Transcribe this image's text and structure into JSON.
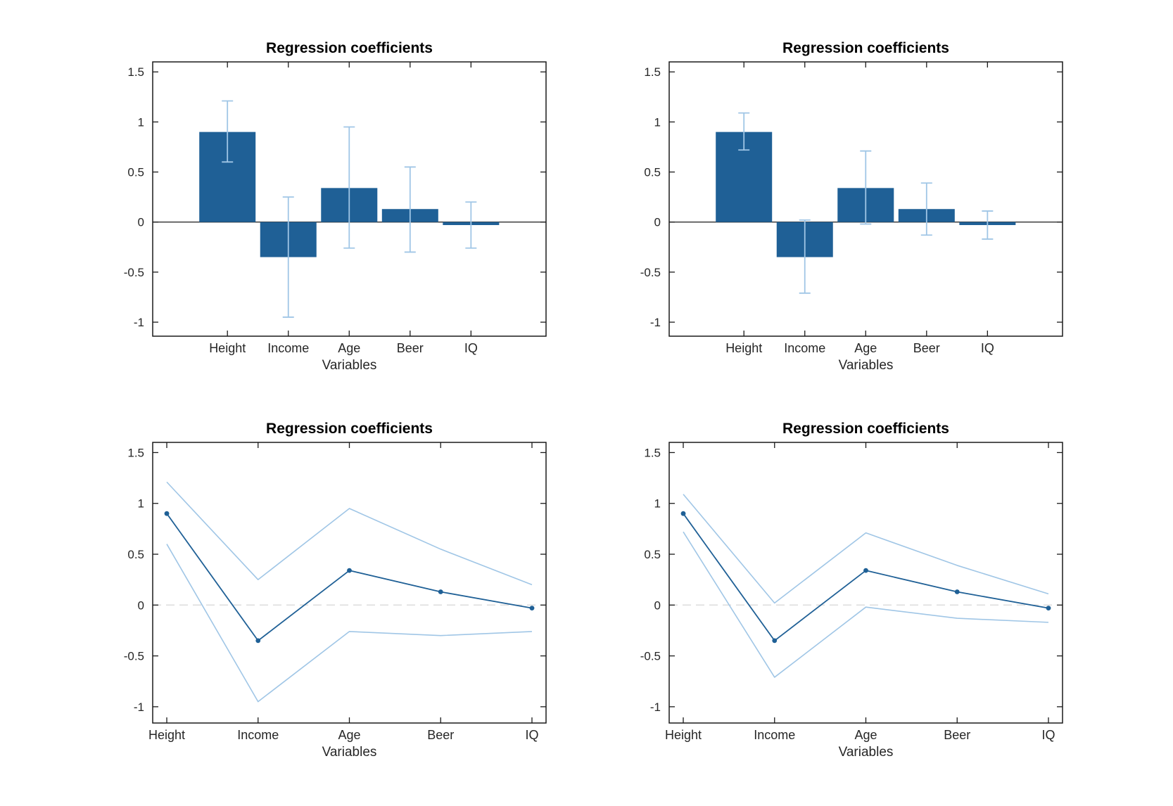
{
  "figure": {
    "background": "#ffffff",
    "colors": {
      "primary": "#1F6096",
      "ci": "#A0C6E6",
      "zero_dash": "#DCDCDC",
      "axis": "#1A1A1A",
      "tick_label": "#262626",
      "title": "#000000"
    }
  },
  "chart_data": [
    {
      "type": "bar",
      "position": "top-left",
      "title": "Regression coefficients",
      "xlabel": "Variables",
      "categories": [
        "Height",
        "Income",
        "Age",
        "Beer",
        "IQ"
      ],
      "values": [
        0.9,
        -0.35,
        0.34,
        0.13,
        -0.03
      ],
      "error_lower": [
        0.6,
        -0.95,
        -0.26,
        -0.3,
        -0.26
      ],
      "error_upper": [
        1.21,
        0.25,
        0.95,
        0.55,
        0.2
      ],
      "ylim": [
        -1.14,
        1.6
      ],
      "yticks": [
        -1,
        -0.5,
        0,
        0.5,
        1,
        1.5
      ],
      "ytick_labels": [
        "-1",
        "-0.5",
        "0",
        "0.5",
        "1",
        "1.5"
      ],
      "grid": false,
      "legend": null,
      "zero_line": "solid"
    },
    {
      "type": "bar",
      "position": "top-right",
      "title": "Regression coefficients",
      "xlabel": "Variables",
      "categories": [
        "Height",
        "Income",
        "Age",
        "Beer",
        "IQ"
      ],
      "values": [
        0.9,
        -0.35,
        0.34,
        0.13,
        -0.03
      ],
      "error_lower": [
        0.72,
        -0.71,
        -0.02,
        -0.13,
        -0.17
      ],
      "error_upper": [
        1.09,
        0.02,
        0.71,
        0.39,
        0.11
      ],
      "ylim": [
        -1.14,
        1.6
      ],
      "yticks": [
        -1,
        -0.5,
        0,
        0.5,
        1,
        1.5
      ],
      "ytick_labels": [
        "-1",
        "-0.5",
        "0",
        "0.5",
        "1",
        "1.5"
      ],
      "grid": false,
      "legend": null,
      "zero_line": "solid"
    },
    {
      "type": "line",
      "position": "bottom-left",
      "title": "Regression coefficients",
      "xlabel": "Variables",
      "categories": [
        "Height",
        "Income",
        "Age",
        "Beer",
        "IQ"
      ],
      "values": [
        0.9,
        -0.35,
        0.34,
        0.13,
        -0.03
      ],
      "ci_lower": [
        0.6,
        -0.95,
        -0.26,
        -0.3,
        -0.26
      ],
      "ci_upper": [
        1.21,
        0.25,
        0.95,
        0.55,
        0.2
      ],
      "ylim": [
        -1.16,
        1.6
      ],
      "yticks": [
        -1,
        -0.5,
        0,
        0.5,
        1,
        1.5
      ],
      "ytick_labels": [
        "-1",
        "-0.5",
        "0",
        "0.5",
        "1",
        "1.5"
      ],
      "grid": false,
      "legend": null,
      "marker": "filled-circle",
      "zero_line": "dashed"
    },
    {
      "type": "line",
      "position": "bottom-right",
      "title": "Regression coefficients",
      "xlabel": "Variables",
      "categories": [
        "Height",
        "Income",
        "Age",
        "Beer",
        "IQ"
      ],
      "values": [
        0.9,
        -0.35,
        0.34,
        0.13,
        -0.03
      ],
      "ci_lower": [
        0.72,
        -0.71,
        -0.02,
        -0.13,
        -0.17
      ],
      "ci_upper": [
        1.09,
        0.02,
        0.71,
        0.39,
        0.11
      ],
      "ylim": [
        -1.16,
        1.6
      ],
      "yticks": [
        -1,
        -0.5,
        0,
        0.5,
        1,
        1.5
      ],
      "ytick_labels": [
        "-1",
        "-0.5",
        "0",
        "0.5",
        "1",
        "1.5"
      ],
      "grid": false,
      "legend": null,
      "marker": "filled-circle",
      "zero_line": "dashed"
    }
  ]
}
